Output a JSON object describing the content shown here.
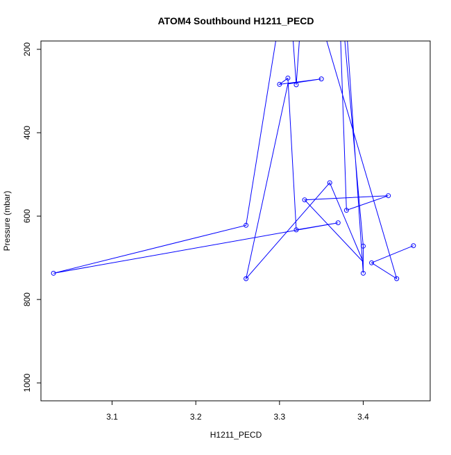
{
  "chart_data": {
    "type": "line",
    "title": "ATOM4 Southbound H1211_PECD",
    "xlabel": "H1211_PECD",
    "ylabel": "Pressure (mbar)",
    "xlim": [
      3.015,
      3.48
    ],
    "ylim": [
      1043,
      180
    ],
    "y_reversed": true,
    "grid": false,
    "x_ticks": [
      3.1,
      3.2,
      3.3,
      3.4
    ],
    "x_tick_labels": [
      "3.1",
      "3.2",
      "3.3",
      "3.4"
    ],
    "y_ticks": [
      200,
      400,
      600,
      800,
      1000
    ],
    "y_tick_labels": [
      "200",
      "400",
      "600",
      "800",
      "1000"
    ],
    "series": [
      {
        "color": "#0000ff",
        "marker": "open-circle",
        "points": [
          [
            3.375,
            0
          ],
          [
            3.4,
            737
          ],
          [
            3.4,
            672
          ],
          [
            3.37,
            0
          ],
          [
            3.38,
            586
          ],
          [
            3.43,
            551
          ],
          [
            3.33,
            561
          ],
          [
            3.4,
            710
          ],
          [
            3.36,
            520
          ],
          [
            3.26,
            750
          ],
          [
            3.31,
            283
          ],
          [
            3.35,
            271
          ],
          [
            3.3,
            284
          ],
          [
            3.31,
            269
          ],
          [
            3.32,
            633
          ],
          [
            3.37,
            616
          ],
          [
            3.03,
            737
          ],
          [
            3.26,
            622
          ],
          [
            3.31,
            0
          ],
          [
            3.32,
            285
          ],
          [
            3.33,
            0
          ],
          [
            3.44,
            750
          ],
          [
            3.41,
            712
          ],
          [
            3.46,
            671
          ]
        ],
        "markers": [
          [
            3.4,
            737
          ],
          [
            3.4,
            672
          ],
          [
            3.38,
            586
          ],
          [
            3.43,
            551
          ],
          [
            3.33,
            561
          ],
          [
            3.36,
            520
          ],
          [
            3.26,
            750
          ],
          [
            3.35,
            271
          ],
          [
            3.3,
            284
          ],
          [
            3.31,
            269
          ],
          [
            3.32,
            633
          ],
          [
            3.37,
            616
          ],
          [
            3.03,
            737
          ],
          [
            3.26,
            622
          ],
          [
            3.32,
            285
          ],
          [
            3.44,
            750
          ],
          [
            3.41,
            712
          ],
          [
            3.46,
            671
          ]
        ]
      }
    ]
  }
}
